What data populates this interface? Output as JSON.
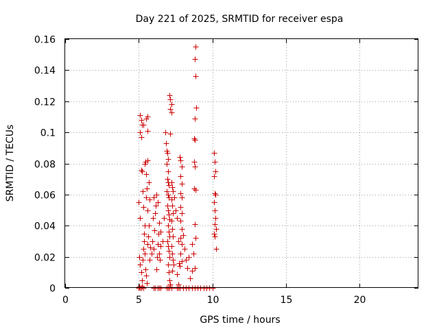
{
  "chart_data": {
    "type": "scatter",
    "title": "Day 221 of 2025, SRMTID for receiver espa",
    "xlabel": "GPS time / hours",
    "ylabel": "SRMTID / TECUs",
    "xlim": [
      0,
      24
    ],
    "ylim": [
      0,
      0.16
    ],
    "x_ticks": [
      0,
      5,
      10,
      15,
      20
    ],
    "x_tick_labels": [
      "0",
      "5",
      "10",
      "15",
      "20"
    ],
    "y_ticks": [
      0,
      0.02,
      0.04,
      0.06,
      0.08,
      0.1,
      0.12,
      0.14,
      0.16
    ],
    "y_tick_labels": [
      "0",
      "0.02",
      "0.04",
      "0.06",
      "0.08",
      "0.1",
      "0.12",
      "0.14",
      "0.16"
    ],
    "grid": true,
    "marker": "+",
    "color": "#cc0000",
    "series": [
      {
        "name": "SRMTID",
        "points": [
          [
            5.0,
            0.0
          ],
          [
            5.05,
            0.001
          ],
          [
            5.1,
            0.0
          ],
          [
            5.15,
            0.0
          ],
          [
            5.2,
            0.001
          ],
          [
            5.3,
            0.0
          ],
          [
            6.0,
            0.0
          ],
          [
            6.1,
            0.0
          ],
          [
            6.3,
            0.0
          ],
          [
            6.4,
            0.0
          ],
          [
            6.5,
            0.0
          ],
          [
            6.9,
            0.0
          ],
          [
            7.0,
            0.0
          ],
          [
            7.1,
            0.0
          ],
          [
            7.2,
            0.0
          ],
          [
            7.6,
            0.0
          ],
          [
            7.7,
            0.0
          ],
          [
            7.8,
            0.0
          ],
          [
            8.0,
            0.0
          ],
          [
            8.2,
            0.0
          ],
          [
            8.4,
            0.0
          ],
          [
            8.6,
            0.0
          ],
          [
            8.8,
            0.0
          ],
          [
            9.0,
            0.0
          ],
          [
            9.2,
            0.0
          ],
          [
            9.4,
            0.0
          ],
          [
            9.6,
            0.0
          ],
          [
            9.8,
            0.0
          ],
          [
            10.0,
            0.0
          ],
          [
            5.1,
            0.111
          ],
          [
            5.15,
            0.108
          ],
          [
            5.2,
            0.105
          ],
          [
            5.1,
            0.1
          ],
          [
            5.15,
            0.097
          ],
          [
            5.5,
            0.109
          ],
          [
            5.6,
            0.11
          ],
          [
            5.6,
            0.101
          ],
          [
            5.3,
            0.105
          ],
          [
            5.0,
            0.055
          ],
          [
            5.1,
            0.045
          ],
          [
            5.15,
            0.076
          ],
          [
            5.2,
            0.075
          ],
          [
            5.25,
            0.062
          ],
          [
            5.3,
            0.052
          ],
          [
            5.35,
            0.035
          ],
          [
            5.4,
            0.04
          ],
          [
            5.4,
            0.08
          ],
          [
            5.45,
            0.081
          ],
          [
            5.5,
            0.073
          ],
          [
            5.5,
            0.058
          ],
          [
            5.55,
            0.064
          ],
          [
            5.6,
            0.082
          ],
          [
            5.6,
            0.05
          ],
          [
            5.7,
            0.068
          ],
          [
            5.75,
            0.057
          ],
          [
            5.05,
            0.02
          ],
          [
            5.1,
            0.015
          ],
          [
            5.15,
            0.01
          ],
          [
            5.2,
            0.005
          ],
          [
            5.25,
            0.018
          ],
          [
            5.3,
            0.025
          ],
          [
            5.35,
            0.03
          ],
          [
            5.4,
            0.022
          ],
          [
            5.45,
            0.012
          ],
          [
            5.5,
            0.008
          ],
          [
            5.55,
            0.003
          ],
          [
            5.6,
            0.028
          ],
          [
            5.65,
            0.033
          ],
          [
            5.7,
            0.04
          ],
          [
            5.75,
            0.018
          ],
          [
            5.8,
            0.026
          ],
          [
            5.85,
            0.022
          ],
          [
            5.9,
            0.03
          ],
          [
            5.95,
            0.045
          ],
          [
            6.0,
            0.025
          ],
          [
            6.05,
            0.037
          ],
          [
            6.1,
            0.048
          ],
          [
            6.15,
            0.053
          ],
          [
            6.2,
            0.012
          ],
          [
            6.25,
            0.02
          ],
          [
            6.3,
            0.028
          ],
          [
            6.35,
            0.035
          ],
          [
            6.4,
            0.022
          ],
          [
            6.45,
            0.018
          ],
          [
            6.5,
            0.027
          ],
          [
            6.0,
            0.058
          ],
          [
            6.1,
            0.048
          ],
          [
            6.2,
            0.06
          ],
          [
            6.3,
            0.055
          ],
          [
            6.4,
            0.042
          ],
          [
            6.5,
            0.036
          ],
          [
            6.6,
            0.03
          ],
          [
            6.7,
            0.045
          ],
          [
            6.8,
            0.1
          ],
          [
            6.85,
            0.093
          ],
          [
            6.9,
            0.088
          ],
          [
            6.95,
            0.087
          ],
          [
            7.0,
            0.083
          ],
          [
            6.9,
            0.08
          ],
          [
            7.0,
            0.075
          ],
          [
            6.95,
            0.07
          ],
          [
            7.0,
            0.068
          ],
          [
            7.05,
            0.066
          ],
          [
            6.9,
            0.062
          ],
          [
            7.0,
            0.06
          ],
          [
            7.05,
            0.058
          ],
          [
            6.95,
            0.053
          ],
          [
            7.0,
            0.05
          ],
          [
            7.05,
            0.047
          ],
          [
            7.1,
            0.044
          ],
          [
            7.0,
            0.04
          ],
          [
            7.05,
            0.036
          ],
          [
            7.1,
            0.033
          ],
          [
            6.95,
            0.03
          ],
          [
            7.0,
            0.027
          ],
          [
            7.05,
            0.024
          ],
          [
            7.1,
            0.02
          ],
          [
            7.0,
            0.015
          ],
          [
            7.05,
            0.01
          ],
          [
            7.1,
            0.005
          ],
          [
            7.15,
            0.002
          ],
          [
            7.1,
            0.124
          ],
          [
            7.15,
            0.121
          ],
          [
            7.2,
            0.118
          ],
          [
            7.15,
            0.115
          ],
          [
            7.2,
            0.113
          ],
          [
            7.15,
            0.099
          ],
          [
            7.2,
            0.068
          ],
          [
            7.25,
            0.065
          ],
          [
            7.3,
            0.062
          ],
          [
            7.2,
            0.057
          ],
          [
            7.25,
            0.053
          ],
          [
            7.3,
            0.048
          ],
          [
            7.2,
            0.043
          ],
          [
            7.25,
            0.038
          ],
          [
            7.3,
            0.033
          ],
          [
            7.2,
            0.027
          ],
          [
            7.25,
            0.022
          ],
          [
            7.3,
            0.018
          ],
          [
            7.35,
            0.015
          ],
          [
            7.25,
            0.011
          ],
          [
            7.4,
            0.058
          ],
          [
            7.5,
            0.05
          ],
          [
            7.6,
            0.045
          ],
          [
            7.7,
            0.03
          ],
          [
            7.75,
            0.016
          ],
          [
            7.8,
            0.014
          ],
          [
            7.6,
            0.009
          ],
          [
            7.7,
            0.002
          ],
          [
            7.8,
            0.084
          ],
          [
            7.85,
            0.082
          ],
          [
            7.9,
            0.078
          ],
          [
            7.85,
            0.072
          ],
          [
            7.9,
            0.067
          ],
          [
            7.85,
            0.061
          ],
          [
            7.9,
            0.058
          ],
          [
            7.85,
            0.052
          ],
          [
            7.9,
            0.048
          ],
          [
            7.85,
            0.043
          ],
          [
            7.9,
            0.038
          ],
          [
            7.85,
            0.032
          ],
          [
            7.9,
            0.028
          ],
          [
            7.85,
            0.022
          ],
          [
            7.9,
            0.017
          ],
          [
            8.0,
            0.034
          ],
          [
            8.1,
            0.025
          ],
          [
            8.2,
            0.018
          ],
          [
            8.3,
            0.013
          ],
          [
            8.4,
            0.02
          ],
          [
            8.5,
            0.006
          ],
          [
            8.6,
            0.011
          ],
          [
            8.7,
            0.022
          ],
          [
            8.6,
            0.028
          ],
          [
            8.85,
            0.155
          ],
          [
            8.8,
            0.147
          ],
          [
            8.85,
            0.136
          ],
          [
            8.9,
            0.116
          ],
          [
            8.8,
            0.109
          ],
          [
            8.75,
            0.096
          ],
          [
            8.8,
            0.095
          ],
          [
            8.75,
            0.081
          ],
          [
            8.8,
            0.078
          ],
          [
            8.75,
            0.064
          ],
          [
            8.85,
            0.063
          ],
          [
            8.8,
            0.041
          ],
          [
            8.85,
            0.032
          ],
          [
            8.8,
            0.013
          ],
          [
            10.1,
            0.087
          ],
          [
            10.15,
            0.081
          ],
          [
            10.2,
            0.075
          ],
          [
            10.1,
            0.072
          ],
          [
            10.15,
            0.061
          ],
          [
            10.2,
            0.06
          ],
          [
            10.1,
            0.055
          ],
          [
            10.15,
            0.05
          ],
          [
            10.2,
            0.045
          ],
          [
            10.15,
            0.041
          ],
          [
            10.25,
            0.038
          ],
          [
            10.1,
            0.035
          ],
          [
            10.15,
            0.033
          ],
          [
            10.25,
            0.025
          ]
        ]
      }
    ]
  }
}
